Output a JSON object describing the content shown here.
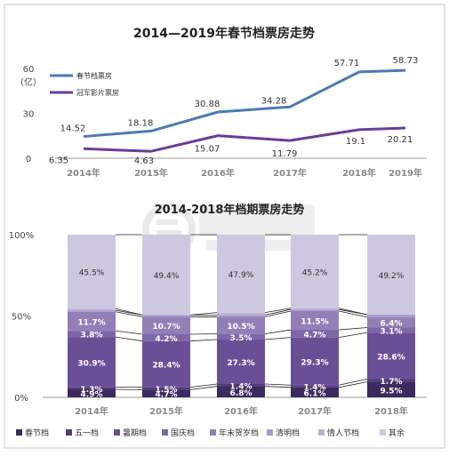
{
  "chart_data": [
    {
      "type": "line",
      "title": "2014—2019年春节档票房走势",
      "x": [
        "2014年",
        "2015年",
        "2016年",
        "2017年",
        "2018年",
        "2019年"
      ],
      "ylabel": "（亿）",
      "ylim": [
        0,
        60
      ],
      "yticks": [
        "0",
        "30",
        "60"
      ],
      "legend_position": "top-left",
      "grid": false,
      "series": [
        {
          "name": "春节档票房",
          "color": "#4a7bb4",
          "values": [
            14.52,
            18.18,
            30.88,
            34.28,
            57.71,
            58.73
          ],
          "labels": [
            "14.52",
            "18.18",
            "30.88",
            "34.28",
            "57.71",
            "58.73"
          ]
        },
        {
          "name": "冠军影片票房",
          "color": "#6a3c9a",
          "values": [
            6.35,
            4.63,
            15.07,
            11.79,
            19.1,
            20.21
          ],
          "labels": [
            "6.35",
            "4.63",
            "15.07",
            "11.79",
            "19.1",
            "20.21"
          ]
        }
      ]
    },
    {
      "type": "bar",
      "stacked": "percent",
      "title": "2014-2018年档期票房走势",
      "categories": [
        "2014年",
        "2015年",
        "2016年",
        "2017年",
        "2018年"
      ],
      "ylim": [
        0,
        100
      ],
      "yticks": [
        "0%",
        "50%",
        "100%"
      ],
      "legend_position": "bottom",
      "grid": false,
      "series": [
        {
          "name": "春节档",
          "color": "#3d2a5e",
          "values": [
            4.9,
            4.7,
            6.8,
            6.1,
            9.5
          ],
          "labels": [
            "4.9%",
            "4.7%",
            "6.8%",
            "6.1%",
            "9.5%"
          ]
        },
        {
          "name": "五一档",
          "color": "#54397f",
          "values": [
            1.3,
            1.5,
            1.4,
            1.4,
            1.7
          ],
          "labels": [
            "1.3%",
            "1.5%",
            "1.4%",
            "1.4%",
            "1.7%"
          ]
        },
        {
          "name": "暑期档",
          "color": "#6b4f96",
          "values": [
            30.9,
            28.4,
            27.3,
            29.3,
            28.6
          ],
          "labels": [
            "30.9%",
            "28.4%",
            "27.3%",
            "29.3%",
            "28.6%"
          ]
        },
        {
          "name": "国庆档",
          "color": "#7e66a8",
          "values": [
            3.8,
            4.2,
            3.5,
            4.7,
            3.1
          ],
          "labels": [
            "3.8%",
            "4.2%",
            "3.5%",
            "4.7%",
            "3.1%"
          ]
        },
        {
          "name": "年末贺岁档",
          "color": "#937fb8",
          "values": [
            11.7,
            10.7,
            10.5,
            11.5,
            6.4
          ],
          "labels": [
            "11.7%",
            "10.7%",
            "10.5%",
            "11.5%",
            "6.4%"
          ]
        },
        {
          "name": "清明档",
          "color": "#a99ac8",
          "values": [
            0.9,
            1.1,
            1.1,
            1.0,
            1.5
          ],
          "labels": [
            "",
            "",
            "",
            "",
            ""
          ]
        },
        {
          "name": "情人节档",
          "color": "#bcb1d5",
          "values": [
            1.0,
            0.0,
            1.5,
            0.8,
            0.0
          ],
          "labels": [
            "",
            "",
            "",
            "",
            ""
          ]
        },
        {
          "name": "其余",
          "color": "#cdc7df",
          "values": [
            45.5,
            49.4,
            47.9,
            45.2,
            49.2
          ],
          "labels": [
            "45.5%",
            "49.4%",
            "47.9%",
            "45.2%",
            "49.2%"
          ]
        }
      ]
    }
  ]
}
